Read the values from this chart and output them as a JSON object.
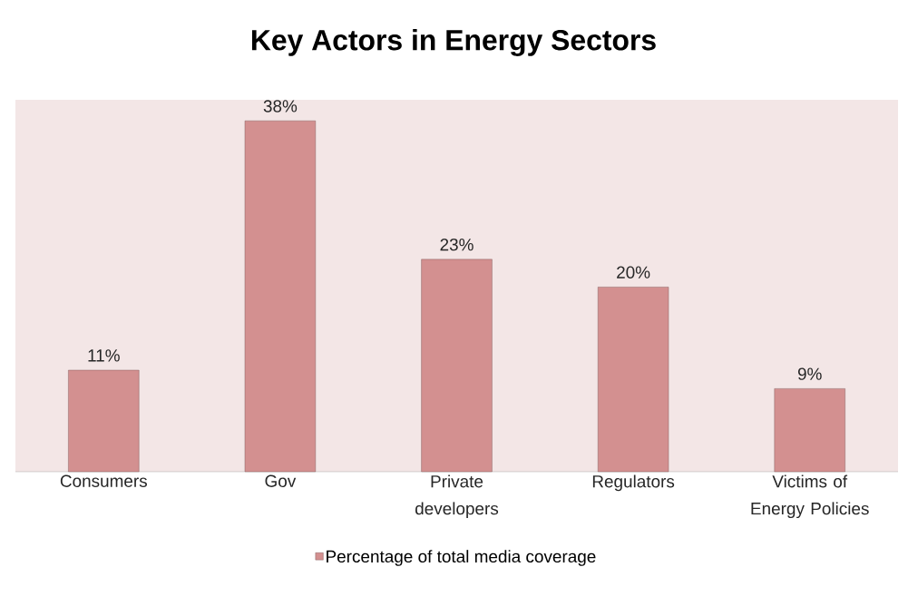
{
  "chart_data": {
    "type": "bar",
    "title": "Key Actors in Energy Sectors",
    "categories": [
      "Consumers",
      "Gov",
      "Private developers",
      "Regulators",
      "Victims of Energy Policies"
    ],
    "series": [
      {
        "name": "Percentage of total media coverage",
        "color": "#d39090",
        "values": [
          11,
          38,
          23,
          20,
          9
        ],
        "value_labels": [
          "11%",
          "38%",
          "23%",
          "20%",
          "9%"
        ]
      }
    ],
    "legend": "bottom"
  }
}
